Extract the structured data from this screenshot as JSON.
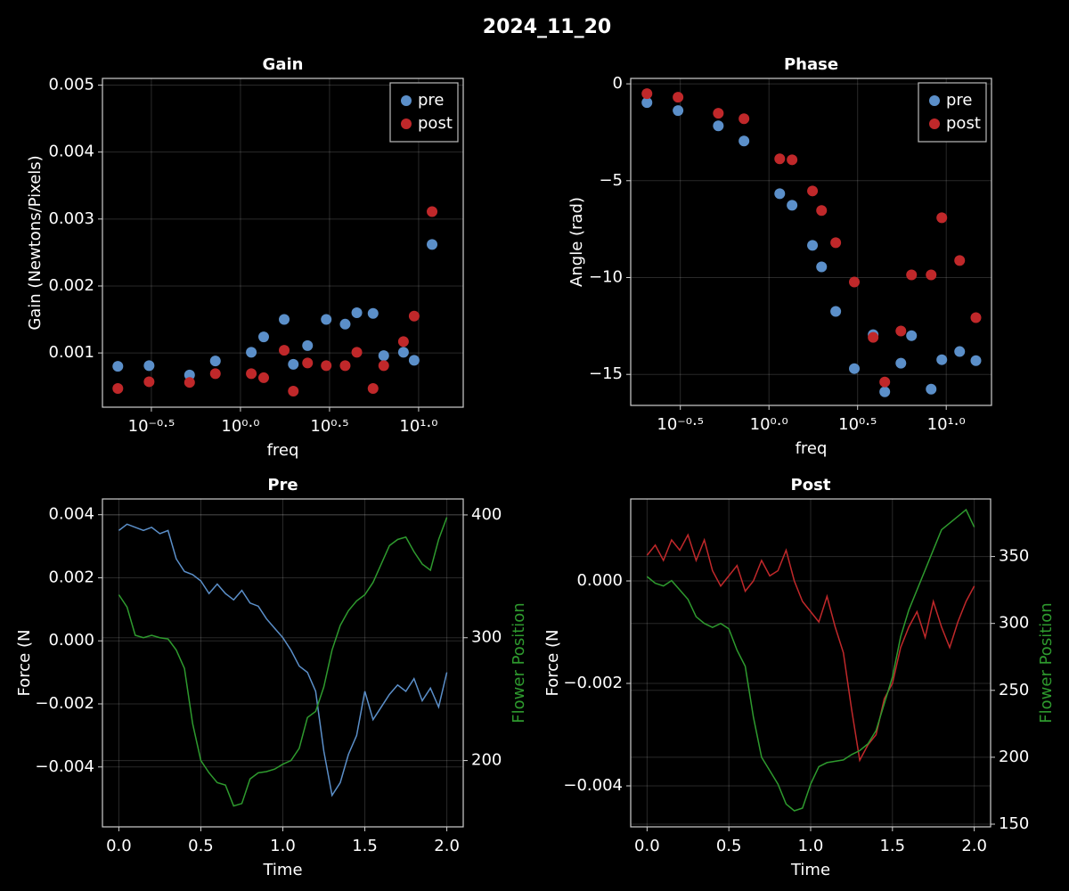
{
  "title": "2024_11_20",
  "chart_data": [
    {
      "type": "scatter",
      "title": "Gain",
      "xlabel": "freq",
      "ylabel": "Gain (Newtons/Pixels)",
      "xscale": "log",
      "grid": true,
      "legend": "top-right",
      "xlim": [
        0.168,
        17.8
      ],
      "ylim": [
        0.00019,
        0.0051
      ],
      "xticks": [
        {
          "value": 0.3162,
          "label": "10⁻⁰·⁵"
        },
        {
          "value": 1,
          "label": "10⁰·⁰"
        },
        {
          "value": 3.162,
          "label": "10⁰·⁵"
        },
        {
          "value": 10,
          "label": "10¹·⁰"
        }
      ],
      "yticks": [
        0.001,
        0.002,
        0.003,
        0.004,
        0.005
      ],
      "x": [
        0.205,
        0.307,
        0.518,
        0.723,
        1.15,
        1.35,
        1.76,
        1.98,
        2.38,
        3.03,
        3.87,
        4.5,
        5.55,
        6.37,
        8.22,
        9.44,
        11.9
      ],
      "series": [
        {
          "name": "pre",
          "color": "#5b8fc9",
          "values": [
            0.0008,
            0.00081,
            0.00067,
            0.00088,
            0.00101,
            0.00124,
            0.0015,
            0.00083,
            0.00111,
            0.0015,
            0.00143,
            0.0016,
            0.00159,
            0.00096,
            0.00101,
            0.00089,
            0.00262
          ]
        },
        {
          "name": "post",
          "color": "#c0282a",
          "values": [
            0.00047,
            0.00057,
            0.00056,
            0.00069,
            0.00069,
            0.00063,
            0.00104,
            0.00043,
            0.00085,
            0.00081,
            0.00081,
            0.00101,
            0.00047,
            0.00081,
            0.00117,
            0.00155,
            0.00311
          ]
        }
      ]
    },
    {
      "type": "scatter",
      "title": "Phase",
      "xlabel": "freq",
      "ylabel": "Angle (rad)",
      "xscale": "log",
      "grid": true,
      "legend": "top-right",
      "xlim": [
        0.166,
        18.0
      ],
      "ylim": [
        -16.6,
        0.28
      ],
      "xticks": [
        {
          "value": 0.3162,
          "label": "10⁻⁰·⁵"
        },
        {
          "value": 1,
          "label": "10⁰·⁰"
        },
        {
          "value": 3.162,
          "label": "10⁰·⁵"
        },
        {
          "value": 10,
          "label": "10¹·⁰"
        }
      ],
      "yticks": [
        0,
        {
          "value": -5,
          "label": "−5"
        },
        {
          "value": -10,
          "label": "−10"
        },
        {
          "value": -15,
          "label": "−15"
        }
      ],
      "x": [
        0.205,
        0.307,
        0.518,
        0.723,
        1.15,
        1.35,
        1.76,
        1.98,
        2.38,
        3.03,
        3.87,
        4.5,
        5.55,
        6.37,
        8.22,
        9.44,
        11.9,
        14.7
      ],
      "series": [
        {
          "name": "pre",
          "color": "#5b8fc9",
          "values": [
            -0.97,
            -1.38,
            -2.17,
            -2.95,
            -5.67,
            -6.27,
            -8.34,
            -9.45,
            -11.75,
            -14.7,
            -12.95,
            -15.9,
            -14.42,
            -13.0,
            -15.76,
            -14.24,
            -13.82,
            -14.29
          ]
        },
        {
          "name": "post",
          "color": "#c0282a",
          "values": [
            -0.51,
            -0.69,
            -1.52,
            -1.8,
            -3.87,
            -3.92,
            -5.53,
            -6.54,
            -8.2,
            -10.23,
            -13.09,
            -15.39,
            -12.76,
            -9.86,
            -9.86,
            -6.91,
            -9.12,
            -12.07
          ]
        }
      ]
    },
    {
      "type": "line",
      "title": "Pre",
      "xlabel": "Time",
      "ylabel": "Force (N",
      "y2label": "Flower Position",
      "grid": true,
      "xlim": [
        -0.1,
        2.1
      ],
      "ylim": [
        -0.0059,
        0.0045
      ],
      "y2lim": [
        146,
        413
      ],
      "xticks": [
        {
          "value": 0,
          "label": "0.0"
        },
        0.5,
        {
          "value": 1,
          "label": "1.0"
        },
        1.5,
        {
          "value": 2,
          "label": "2.0"
        }
      ],
      "yticks": [
        {
          "value": -0.004,
          "label": "−0.004"
        },
        {
          "value": -0.002,
          "label": "−0.002"
        },
        {
          "value": 0,
          "label": "0.000"
        },
        0.002,
        0.004
      ],
      "y2ticks": [
        200,
        300,
        400
      ],
      "x": [
        0,
        0.05,
        0.1,
        0.15,
        0.2,
        0.25,
        0.3,
        0.35,
        0.4,
        0.45,
        0.5,
        0.55,
        0.6,
        0.65,
        0.7,
        0.75,
        0.8,
        0.85,
        0.9,
        0.95,
        1.0,
        1.05,
        1.1,
        1.15,
        1.2,
        1.25,
        1.3,
        1.35,
        1.4,
        1.45,
        1.5,
        1.55,
        1.6,
        1.65,
        1.7,
        1.75,
        1.8,
        1.85,
        1.9,
        1.95,
        2.0
      ],
      "series": [
        {
          "color": "#5b8fc9",
          "values": [
            0.0035,
            0.0037,
            0.0036,
            0.0035,
            0.0036,
            0.0034,
            0.0035,
            0.0026,
            0.0022,
            0.0021,
            0.0019,
            0.0015,
            0.0018,
            0.0015,
            0.0013,
            0.0016,
            0.0012,
            0.0011,
            0.0007,
            0.0004,
            0.0001,
            -0.0003,
            -0.0008,
            -0.001,
            -0.0016,
            -0.0035,
            -0.0049,
            -0.0045,
            -0.0036,
            -0.003,
            -0.0016,
            -0.0025,
            -0.0021,
            -0.0017,
            -0.0014,
            -0.0016,
            -0.0012,
            -0.0019,
            -0.0015,
            -0.0021,
            -0.001
          ]
        },
        {
          "color": "#2e9a2e",
          "axis": "y2",
          "values": [
            335,
            325,
            302,
            300,
            302,
            300,
            299,
            290,
            275,
            230,
            200,
            190,
            182,
            180,
            163,
            165,
            185,
            190,
            191,
            193,
            197,
            200,
            210,
            235,
            240,
            260,
            290,
            310,
            322,
            330,
            335,
            345,
            360,
            375,
            380,
            382,
            370,
            360,
            355,
            380,
            398
          ]
        }
      ]
    },
    {
      "type": "line",
      "title": "Post",
      "xlabel": "Time",
      "ylabel": "Force (N",
      "y2label": "Flower Position",
      "grid": true,
      "xlim": [
        -0.1,
        2.1
      ],
      "ylim": [
        -0.0048,
        0.0016
      ],
      "y2lim": [
        148,
        393
      ],
      "xticks": [
        {
          "value": 0,
          "label": "0.0"
        },
        0.5,
        {
          "value": 1,
          "label": "1.0"
        },
        1.5,
        {
          "value": 2,
          "label": "2.0"
        }
      ],
      "yticks": [
        {
          "value": -0.004,
          "label": "−0.004"
        },
        {
          "value": -0.002,
          "label": "−0.002"
        },
        {
          "value": 0,
          "label": "0.000"
        }
      ],
      "y2ticks": [
        150,
        200,
        250,
        300,
        350
      ],
      "x": [
        0,
        0.05,
        0.1,
        0.15,
        0.2,
        0.25,
        0.3,
        0.35,
        0.4,
        0.45,
        0.5,
        0.55,
        0.6,
        0.65,
        0.7,
        0.75,
        0.8,
        0.85,
        0.9,
        0.95,
        1.0,
        1.05,
        1.1,
        1.15,
        1.2,
        1.25,
        1.3,
        1.35,
        1.4,
        1.45,
        1.5,
        1.55,
        1.6,
        1.65,
        1.7,
        1.75,
        1.8,
        1.85,
        1.9,
        1.95,
        2.0
      ],
      "series": [
        {
          "color": "#c0282a",
          "values": [
            0.0005,
            0.0007,
            0.0004,
            0.0008,
            0.0006,
            0.0009,
            0.0004,
            0.0008,
            0.0002,
            -0.0001,
            0.0001,
            0.0003,
            -0.0002,
            0.0,
            0.0004,
            0.0001,
            0.0002,
            0.0006,
            0.0,
            -0.0004,
            -0.0006,
            -0.0008,
            -0.0003,
            -0.0009,
            -0.0014,
            -0.0025,
            -0.0035,
            -0.0032,
            -0.003,
            -0.0023,
            -0.002,
            -0.0013,
            -0.0009,
            -0.0006,
            -0.0011,
            -0.0004,
            -0.0009,
            -0.0013,
            -0.0008,
            -0.0004,
            -0.0001
          ]
        },
        {
          "color": "#2e9a2e",
          "axis": "y2",
          "values": [
            335,
            330,
            328,
            332,
            325,
            318,
            305,
            300,
            297,
            300,
            296,
            280,
            268,
            230,
            200,
            190,
            180,
            165,
            160,
            162,
            180,
            193,
            196,
            197,
            198,
            202,
            205,
            210,
            220,
            240,
            260,
            290,
            310,
            325,
            340,
            355,
            370,
            375,
            380,
            385,
            372
          ]
        }
      ]
    }
  ]
}
